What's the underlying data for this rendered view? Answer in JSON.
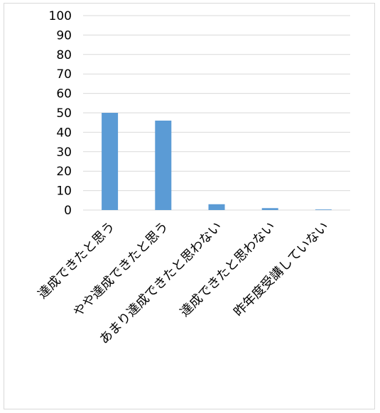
{
  "chart_data": {
    "type": "bar",
    "title": "",
    "xlabel": "",
    "ylabel": "",
    "categories": [
      "達成できたと思う",
      "やや達成できたと思う",
      "あまり達成できたと思わない",
      "達成できたと思わない",
      "昨年度受講していない"
    ],
    "values": [
      50,
      46,
      3,
      1,
      0.3
    ],
    "ylim": [
      0,
      100
    ],
    "yticks": [
      0,
      10,
      20,
      30,
      40,
      50,
      60,
      70,
      80,
      90,
      100
    ],
    "grid": true,
    "legend": "none",
    "bar_color": "#5b9bd5",
    "grid_color": "#d9d9d9"
  }
}
